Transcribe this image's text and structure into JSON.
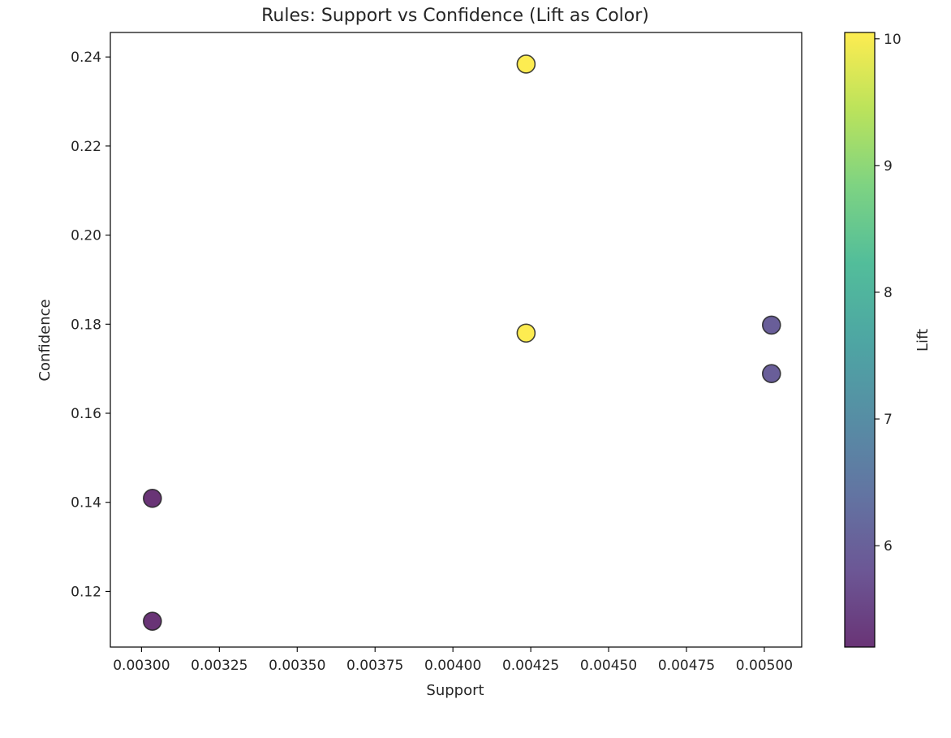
{
  "chart_data": {
    "type": "scatter",
    "title": "Rules: Support vs Confidence (Lift as Color)",
    "xlabel": "Support",
    "ylabel": "Confidence",
    "xlim": [
      0.0029,
      0.00512
    ],
    "ylim": [
      0.1075,
      0.2455
    ],
    "xticks": [
      0.003,
      0.00325,
      0.0035,
      0.00375,
      0.004,
      0.00425,
      0.0045,
      0.00475,
      0.005
    ],
    "xtick_labels": [
      "0.00300",
      "0.00325",
      "0.00350",
      "0.00375",
      "0.00400",
      "0.00425",
      "0.00450",
      "0.00475",
      "0.00500"
    ],
    "yticks": [
      0.12,
      0.14,
      0.16,
      0.18,
      0.2,
      0.22,
      0.24
    ],
    "ytick_labels": [
      "0.12",
      "0.14",
      "0.16",
      "0.18",
      "0.20",
      "0.22",
      "0.24"
    ],
    "grid": false,
    "colorbar": {
      "label": "Lift",
      "colormap": "viridis",
      "range": [
        5.2,
        10.05
      ],
      "ticks": [
        6,
        7,
        8,
        9,
        10
      ],
      "tick_labels": [
        "6",
        "7",
        "8",
        "9",
        "10"
      ]
    },
    "points": [
      {
        "x": 0.003035,
        "y": 0.1409,
        "lift": 5.2
      },
      {
        "x": 0.003035,
        "y": 0.1133,
        "lift": 5.2
      },
      {
        "x": 0.004235,
        "y": 0.2384,
        "lift": 10.05
      },
      {
        "x": 0.004235,
        "y": 0.178,
        "lift": 10.05
      },
      {
        "x": 0.005023,
        "y": 0.1798,
        "lift": 5.95
      },
      {
        "x": 0.005023,
        "y": 0.1689,
        "lift": 5.95
      }
    ]
  }
}
